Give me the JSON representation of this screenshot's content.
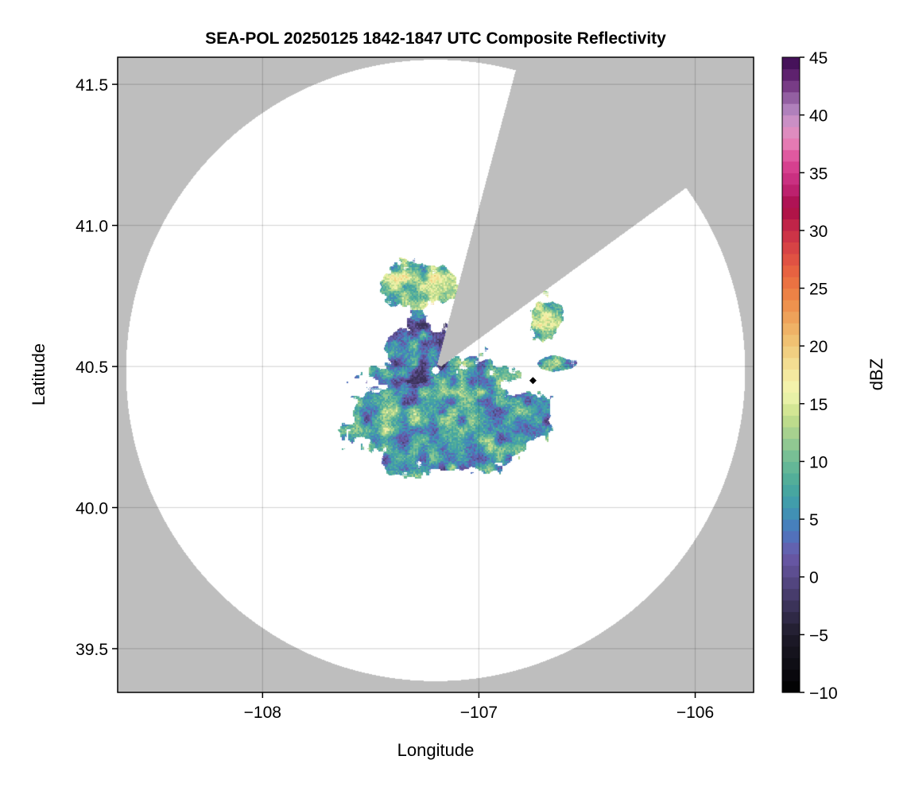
{
  "chart_data": {
    "type": "heatmap",
    "title": "SEA-POL 20250125 1842-1847 UTC Composite Reflectivity",
    "xlabel": "Longitude",
    "ylabel": "Latitude",
    "xlim": [
      -108.67,
      -105.73
    ],
    "ylim": [
      39.345,
      41.596
    ],
    "xticks": [
      -108,
      -107,
      -106
    ],
    "xtick_labels": [
      "−108",
      "−107",
      "−106"
    ],
    "yticks": [
      39.5,
      40.0,
      40.5,
      41.0,
      41.5
    ],
    "ytick_labels": [
      "39.5",
      "40.0",
      "40.5",
      "41.0",
      "41.5"
    ],
    "grid": true,
    "no_data_color": "#bebebe",
    "coverage_color": "#ffffff",
    "radar_site": {
      "lon": -107.2,
      "lat": 40.486
    },
    "coverage_radius_deg": {
      "lon": 1.431,
      "lat": 1.101
    },
    "blocked_sector_azimuth_deg": [
      15,
      54
    ],
    "marker": {
      "lon": -106.75,
      "lat": 40.45,
      "shape": "diamond",
      "color": "#000000"
    },
    "echo_regions": [
      {
        "lon": -107.17,
        "lat": 40.33,
        "half_lon": 0.42,
        "half_lat": 0.2,
        "mean_dbz": 9
      },
      {
        "lon": -107.28,
        "lat": 40.53,
        "half_lon": 0.15,
        "half_lat": 0.15,
        "mean_dbz": 5
      },
      {
        "lon": -107.27,
        "lat": 40.79,
        "half_lon": 0.18,
        "half_lat": 0.08,
        "mean_dbz": 14
      },
      {
        "lon": -106.69,
        "lat": 40.67,
        "half_lon": 0.07,
        "half_lat": 0.08,
        "mean_dbz": 13
      },
      {
        "lon": -106.65,
        "lat": 40.51,
        "half_lon": 0.08,
        "half_lat": 0.025,
        "mean_dbz": 12
      },
      {
        "lon": -107.45,
        "lat": 40.33,
        "half_lon": 0.12,
        "half_lat": 0.12,
        "mean_dbz": 9
      },
      {
        "lon": -106.85,
        "lat": 40.32,
        "half_lon": 0.16,
        "half_lat": 0.1,
        "mean_dbz": 7
      }
    ],
    "colorbar": {
      "label": "dBZ",
      "range": [
        -10,
        45
      ],
      "ticks": [
        -10,
        -5,
        0,
        5,
        10,
        15,
        20,
        25,
        30,
        35,
        40,
        45
      ],
      "tick_labels": [
        "−10",
        "−5",
        "0",
        "5",
        "10",
        "15",
        "20",
        "25",
        "30",
        "35",
        "40",
        "45"
      ],
      "levels": 55,
      "colormap_stops": [
        [
          -10,
          "#000000"
        ],
        [
          -5,
          "#1e1b2a"
        ],
        [
          0,
          "#584a88"
        ],
        [
          2,
          "#6a5aaa"
        ],
        [
          4,
          "#4a78c0"
        ],
        [
          6,
          "#3e98b0"
        ],
        [
          8,
          "#4aaa9a"
        ],
        [
          10,
          "#6cbb96"
        ],
        [
          12,
          "#9ccc90"
        ],
        [
          14,
          "#c8e08a"
        ],
        [
          16,
          "#f2f6b0"
        ],
        [
          18,
          "#f4e49a"
        ],
        [
          20,
          "#f0c878"
        ],
        [
          22,
          "#eeaa60"
        ],
        [
          24,
          "#ee8a48"
        ],
        [
          26,
          "#ea6a40"
        ],
        [
          28,
          "#dc4a44"
        ],
        [
          30,
          "#c82c48"
        ],
        [
          32,
          "#a80c48"
        ],
        [
          34,
          "#c4287a"
        ],
        [
          36,
          "#dc4896"
        ],
        [
          38,
          "#e88abc"
        ],
        [
          40,
          "#c090c8"
        ],
        [
          41,
          "#a070b0"
        ],
        [
          43,
          "#6a2a78"
        ],
        [
          45,
          "#3a0a50"
        ]
      ]
    }
  }
}
